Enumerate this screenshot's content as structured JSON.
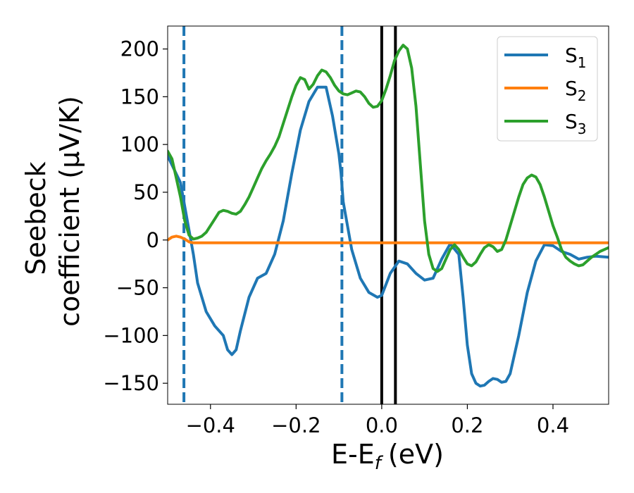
{
  "chart_data": {
    "type": "line",
    "title": "",
    "xlabel": "E-E",
    "xlabel_sub": "f",
    "xlabel_unit": "(eV)",
    "ylabel_line1": "Seebeck",
    "ylabel_line2": "coefficient  (μV/K)",
    "xlim": [
      -0.5,
      0.53
    ],
    "ylim": [
      -172,
      224
    ],
    "grid": false,
    "legend_position": "top-right",
    "xticks": [
      -0.4,
      -0.2,
      0.0,
      0.2,
      0.4
    ],
    "xtick_labels": [
      "−0.4",
      "−0.2",
      "0.0",
      "0.2",
      "0.4"
    ],
    "yticks": [
      -150,
      -100,
      -50,
      0,
      50,
      100,
      150,
      200
    ],
    "ytick_labels": [
      "−150",
      "−100",
      "−50",
      "0",
      "50",
      "100",
      "150",
      "200"
    ],
    "vlines": [
      {
        "x": -0.462,
        "color": "#1f77b4",
        "style": "dashed"
      },
      {
        "x": -0.093,
        "color": "#1f77b4",
        "style": "dashed"
      },
      {
        "x": 0.0,
        "color": "#000000",
        "style": "solid"
      },
      {
        "x": 0.032,
        "color": "#000000",
        "style": "solid"
      }
    ],
    "series": [
      {
        "name": "S",
        "sub": "1",
        "color": "#1f77b4",
        "x": [
          -0.5,
          -0.47,
          -0.46,
          -0.45,
          -0.44,
          -0.43,
          -0.41,
          -0.39,
          -0.37,
          -0.36,
          -0.35,
          -0.34,
          -0.33,
          -0.31,
          -0.29,
          -0.27,
          -0.25,
          -0.23,
          -0.21,
          -0.19,
          -0.17,
          -0.15,
          -0.13,
          -0.115,
          -0.1,
          -0.095,
          -0.09,
          -0.07,
          -0.05,
          -0.03,
          -0.01,
          0.0,
          0.02,
          0.04,
          0.06,
          0.08,
          0.1,
          0.12,
          0.14,
          0.16,
          0.18,
          0.19,
          0.2,
          0.21,
          0.22,
          0.23,
          0.24,
          0.25,
          0.26,
          0.27,
          0.28,
          0.29,
          0.3,
          0.32,
          0.34,
          0.36,
          0.38,
          0.4,
          0.42,
          0.44,
          0.46,
          0.48,
          0.5,
          0.53
        ],
        "y": [
          88,
          60,
          35,
          10,
          -15,
          -45,
          -75,
          -90,
          -100,
          -115,
          -120,
          -115,
          -95,
          -60,
          -40,
          -35,
          -15,
          20,
          70,
          115,
          145,
          160,
          160,
          130,
          90,
          70,
          40,
          -10,
          -40,
          -55,
          -60,
          -58,
          -35,
          -22,
          -25,
          -35,
          -42,
          -40,
          -20,
          -4,
          -15,
          -60,
          -110,
          -140,
          -150,
          -153,
          -152,
          -148,
          -145,
          -146,
          -149,
          -148,
          -140,
          -100,
          -55,
          -22,
          -5,
          -6,
          -12,
          -15,
          -20,
          -18,
          -17,
          -18
        ]
      },
      {
        "name": "S",
        "sub": "2",
        "color": "#ff7f0e",
        "x": [
          -0.5,
          -0.49,
          -0.48,
          -0.47,
          -0.46,
          -0.45,
          -0.44,
          -0.43,
          -0.41,
          -0.39,
          -0.37,
          -0.35,
          -0.33,
          -0.31,
          -0.29,
          -0.27,
          -0.25,
          -0.23,
          -0.21,
          -0.19,
          -0.17,
          -0.16,
          -0.15,
          -0.14,
          -0.13,
          -0.12,
          -0.11,
          -0.1,
          -0.09,
          -0.08,
          -0.07,
          -0.06,
          -0.05,
          -0.04,
          -0.03,
          -0.02,
          -0.01,
          0.0,
          0.01,
          0.02,
          0.03,
          0.04,
          0.05,
          0.06,
          0.07,
          0.08,
          0.09,
          0.1,
          0.11,
          0.12,
          0.13,
          0.14,
          0.15,
          0.16,
          0.17,
          0.18,
          0.19,
          0.2,
          0.21,
          0.22,
          0.23,
          0.24,
          0.25,
          0.26,
          0.27,
          0.28,
          0.29,
          0.3,
          0.31,
          0.32,
          0.33,
          0.34,
          0.35,
          0.36,
          0.37,
          0.38,
          0.39,
          0.4,
          0.41,
          0.42,
          0.43,
          0.44,
          0.45,
          0.46,
          0.47,
          0.48,
          0.49,
          0.5,
          0.51,
          0.52,
          0.53
        ],
        "y": [
          0,
          3,
          4,
          3,
          1,
          -2,
          -3,
          -3,
          -3,
          -3,
          -3,
          -3,
          -3,
          -3,
          -3,
          -3,
          -3,
          -3,
          -3,
          -3,
          -3,
          -3,
          -3,
          -3,
          -3,
          -3,
          -3,
          -3,
          -3,
          -3,
          -3,
          -3,
          -3,
          -3,
          -3,
          -3,
          -3,
          -3,
          -3,
          -3,
          -3,
          -3,
          -3,
          -3,
          -3,
          -3,
          -3,
          -3,
          -3,
          -3,
          -3,
          -3,
          -3,
          -3,
          -3,
          -3,
          -3,
          -3,
          -3,
          -3,
          -3,
          -3,
          -3,
          -3,
          -3,
          -3,
          -3,
          -3,
          -3,
          -3,
          -3,
          -3,
          -3,
          -3,
          -3,
          -3,
          -3,
          -3,
          -3,
          -3,
          -3,
          -3,
          -3,
          -3,
          -3,
          -3,
          -3,
          -3,
          -3,
          -3,
          -3
        ]
      },
      {
        "name": "S",
        "sub": "3",
        "color": "#2ca02c",
        "x": [
          -0.5,
          -0.49,
          -0.48,
          -0.47,
          -0.46,
          -0.45,
          -0.44,
          -0.43,
          -0.42,
          -0.41,
          -0.4,
          -0.39,
          -0.38,
          -0.37,
          -0.36,
          -0.35,
          -0.34,
          -0.33,
          -0.32,
          -0.31,
          -0.3,
          -0.29,
          -0.28,
          -0.27,
          -0.26,
          -0.25,
          -0.24,
          -0.23,
          -0.22,
          -0.21,
          -0.2,
          -0.19,
          -0.18,
          -0.17,
          -0.16,
          -0.15,
          -0.14,
          -0.13,
          -0.12,
          -0.11,
          -0.1,
          -0.09,
          -0.08,
          -0.07,
          -0.06,
          -0.05,
          -0.04,
          -0.03,
          -0.02,
          -0.01,
          0.0,
          0.01,
          0.02,
          0.03,
          0.04,
          0.05,
          0.06,
          0.07,
          0.08,
          0.09,
          0.1,
          0.11,
          0.12,
          0.13,
          0.14,
          0.15,
          0.16,
          0.17,
          0.18,
          0.19,
          0.2,
          0.21,
          0.22,
          0.23,
          0.24,
          0.25,
          0.26,
          0.27,
          0.28,
          0.29,
          0.3,
          0.31,
          0.32,
          0.33,
          0.34,
          0.35,
          0.36,
          0.37,
          0.38,
          0.39,
          0.4,
          0.41,
          0.42,
          0.43,
          0.44,
          0.45,
          0.46,
          0.47,
          0.48,
          0.49,
          0.5,
          0.51,
          0.52,
          0.53
        ],
        "y": [
          93,
          85,
          65,
          45,
          20,
          5,
          1,
          2,
          4,
          8,
          15,
          22,
          29,
          31,
          30,
          28,
          27,
          30,
          37,
          45,
          55,
          65,
          75,
          83,
          90,
          98,
          108,
          122,
          136,
          150,
          162,
          170,
          168,
          158,
          163,
          172,
          178,
          176,
          170,
          162,
          156,
          153,
          152,
          154,
          156,
          155,
          150,
          143,
          139,
          140,
          146,
          158,
          172,
          188,
          198,
          204,
          200,
          180,
          140,
          80,
          20,
          -15,
          -30,
          -33,
          -30,
          -20,
          -10,
          -5,
          -10,
          -18,
          -25,
          -27,
          -23,
          -15,
          -8,
          -5,
          -7,
          -12,
          -10,
          0,
          15,
          30,
          45,
          58,
          65,
          68,
          66,
          58,
          45,
          30,
          15,
          3,
          -10,
          -18,
          -22,
          -25,
          -27,
          -26,
          -22,
          -18,
          -15,
          -12,
          -10,
          -8
        ]
      }
    ]
  }
}
